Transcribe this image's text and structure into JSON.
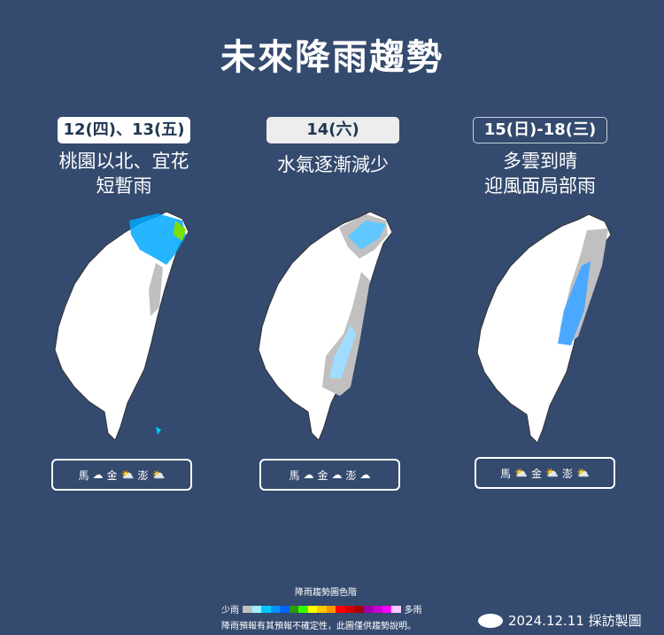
{
  "title": "未來降雨趨勢",
  "panels": [
    {
      "date": "12(四)、13(五)",
      "line1": "桃園以北、宜花",
      "line2": "短暫雨",
      "islands": [
        {
          "name": "馬",
          "icon": "cloud-icon"
        },
        {
          "name": "金",
          "icon": "sun-behind-cloud-icon"
        },
        {
          "name": "澎",
          "icon": "sun-behind-cloud-icon"
        }
      ]
    },
    {
      "date": "14(六)",
      "line1": "水氣逐漸減少",
      "line2": "",
      "islands": [
        {
          "name": "馬",
          "icon": "cloud-icon"
        },
        {
          "name": "金",
          "icon": "cloud-icon"
        },
        {
          "name": "澎",
          "icon": "cloud-icon"
        }
      ]
    },
    {
      "date": "15(日)-18(三)",
      "line1": "多雲到晴",
      "line2": "迎風面局部雨",
      "islands": [
        {
          "name": "馬",
          "icon": "sun-behind-cloud-icon"
        },
        {
          "name": "金",
          "icon": "sun-behind-cloud-icon"
        },
        {
          "name": "澎",
          "icon": "sun-behind-cloud-icon"
        }
      ]
    }
  ],
  "legend": {
    "title": "降雨趨勢圖色階",
    "low": "少雨",
    "high": "多雨",
    "note": "降雨預報有其預報不確定性，此圖僅供趨勢說明。",
    "colors": [
      "#c0c0c0",
      "#a0f0ff",
      "#00c8ff",
      "#0096ff",
      "#0064ff",
      "#329600",
      "#32ff00",
      "#ffff00",
      "#ffc800",
      "#ff9600",
      "#ff0000",
      "#d20000",
      "#aa0000",
      "#9b00aa",
      "#c800d2",
      "#ff00ff",
      "#ffc8ff"
    ]
  },
  "credit": "2024.12.11 採訪製圖"
}
